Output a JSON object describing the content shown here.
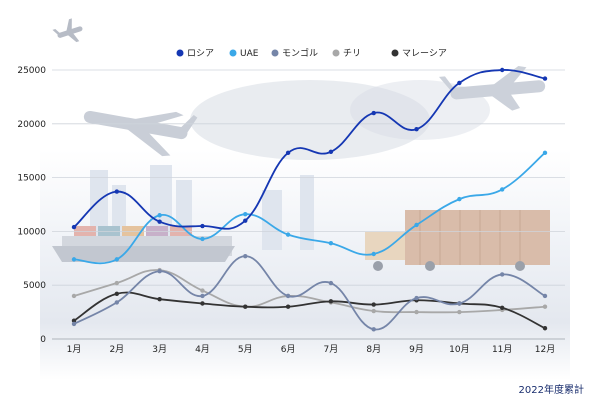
{
  "chart_data": {
    "type": "line",
    "categories": [
      "1月",
      "2月",
      "3月",
      "4月",
      "5月",
      "6月",
      "7月",
      "8月",
      "9月",
      "10月",
      "11月",
      "12月"
    ],
    "ylim": [
      0,
      25000
    ],
    "yticks": [
      0,
      5000,
      10000,
      15000,
      20000,
      25000
    ],
    "grid": true,
    "legend_position": "top-center",
    "series": [
      {
        "name": "ロシア",
        "color": "#1537b3",
        "values": [
          10400,
          13700,
          10900,
          10500,
          11000,
          17300,
          17400,
          21000,
          19500,
          23800,
          25000,
          24200
        ]
      },
      {
        "name": "UAE",
        "color": "#3aa8e8",
        "values": [
          7400,
          7400,
          11500,
          9300,
          11600,
          9700,
          8900,
          7900,
          10600,
          13000,
          13900,
          17300
        ]
      },
      {
        "name": "モンゴル",
        "color": "#7585a8",
        "values": [
          1400,
          3400,
          6300,
          4000,
          7700,
          4000,
          5200,
          900,
          3800,
          3300,
          6000,
          4000
        ]
      },
      {
        "name": "チリ",
        "color": "#a8a8a8",
        "values": [
          4000,
          5200,
          6400,
          4500,
          3000,
          4000,
          3400,
          2600,
          2500,
          2500,
          2700,
          3000
        ]
      },
      {
        "name": "マレーシア",
        "color": "#333333",
        "values": [
          1700,
          4200,
          3700,
          3300,
          3000,
          3000,
          3500,
          3200,
          3600,
          3300,
          2900,
          1000
        ]
      }
    ],
    "annotation": "2022年度累計"
  }
}
